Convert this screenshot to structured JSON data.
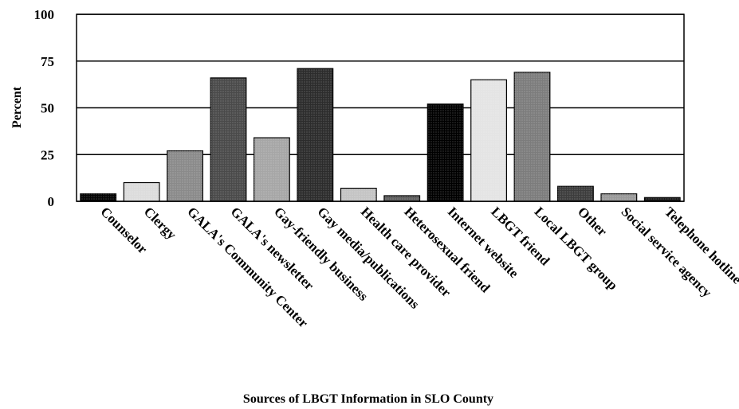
{
  "chart_data": {
    "type": "bar",
    "title": "",
    "xlabel": "Sources of LBGT Information in SLO County",
    "ylabel": "Percent",
    "ylim": [
      0,
      100
    ],
    "yticks": [
      0,
      25,
      50,
      75,
      100
    ],
    "grid": true,
    "legend": "none",
    "categories": [
      "Counselor",
      "Clergy",
      "GALA's Community Center",
      "GALA's newsletter",
      "Gay-friendly business",
      "Gay media/publications",
      "Health care provider",
      "Heterosexual friend",
      "Internet website",
      "LBGT friend",
      "Local LBGT group",
      "Other",
      "Social service agency",
      "Telephone hotline"
    ],
    "values": [
      4,
      10,
      27,
      66,
      34,
      71,
      7,
      3,
      52,
      65,
      69,
      8,
      4,
      2
    ],
    "colors": [
      "#050505",
      "#dcdcdc",
      "#8a8a8a",
      "#4a4a4a",
      "#a6a6a6",
      "#2c2c2c",
      "#c4c4c4",
      "#5e5e5e",
      "#000000",
      "#e4e4e4",
      "#7c7c7c",
      "#3c3c3c",
      "#9a9a9a",
      "#1a1a1a"
    ]
  }
}
